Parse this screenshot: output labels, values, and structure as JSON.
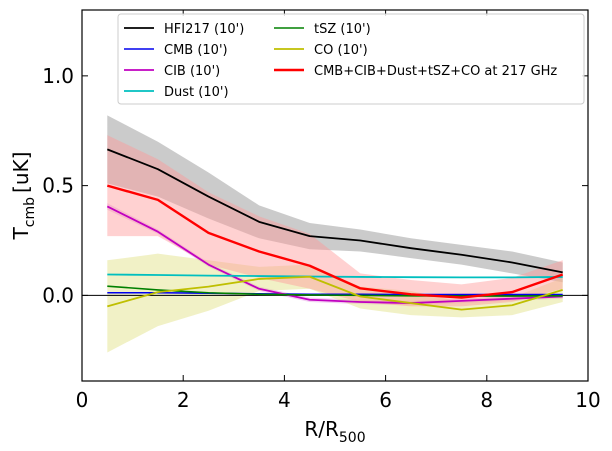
{
  "chart_data": {
    "type": "line",
    "xlabel": "R/R",
    "xlabel_sub": "500",
    "ylabel": "T",
    "ylabel_sub": "cmb",
    "ylabel_unit": "[uK]",
    "xlim": [
      0,
      10
    ],
    "ylim": [
      -0.39,
      1.3
    ],
    "xticks": [
      0,
      2,
      4,
      6,
      8,
      10
    ],
    "xtick_labels": [
      "0",
      "2",
      "4",
      "6",
      "8",
      "10"
    ],
    "yticks": [
      0.0,
      0.5,
      1.0
    ],
    "ytick_labels": [
      "0.0",
      "0.5",
      "1.0"
    ],
    "zero_line": true,
    "grid": false,
    "legend_position": "top",
    "x": [
      0.5,
      1.5,
      2.5,
      3.5,
      4.5,
      5.5,
      6.5,
      7.5,
      8.5,
      9.5
    ],
    "series": [
      {
        "name": "HFI217 (10')",
        "color": "#000000",
        "width": 1.8,
        "values": [
          0.665,
          0.575,
          0.45,
          0.335,
          0.27,
          0.25,
          0.215,
          0.185,
          0.15,
          0.105
        ],
        "band": {
          "color": "#b3b3b3",
          "opacity": 0.68,
          "upper": [
            0.82,
            0.7,
            0.56,
            0.41,
            0.33,
            0.3,
            0.26,
            0.23,
            0.2,
            0.15
          ],
          "lower": [
            0.51,
            0.45,
            0.35,
            0.26,
            0.21,
            0.2,
            0.17,
            0.14,
            0.1,
            0.06
          ]
        }
      },
      {
        "name": "CMB (10')",
        "color": "#0000ee",
        "width": 1.6,
        "values": [
          0.012,
          0.012,
          0.01,
          0.007,
          0.005,
          0.005,
          0.004,
          0.004,
          0.004,
          0.004
        ]
      },
      {
        "name": "CIB (10')",
        "color": "#c000c0",
        "width": 1.8,
        "values": [
          0.405,
          0.29,
          0.14,
          0.03,
          -0.02,
          -0.03,
          -0.035,
          -0.025,
          -0.015,
          -0.005
        ],
        "band": {
          "color": "#e8a0e8",
          "opacity": 0.5,
          "upper": [
            0.42,
            0.3,
            0.15,
            0.04,
            -0.01,
            -0.02,
            -0.025,
            -0.015,
            -0.005,
            0.005
          ],
          "lower": [
            0.39,
            0.28,
            0.13,
            0.02,
            -0.03,
            -0.04,
            -0.045,
            -0.035,
            -0.025,
            -0.015
          ]
        }
      },
      {
        "name": "Dust (10')",
        "color": "#00bfbf",
        "width": 1.8,
        "values": [
          0.095,
          0.093,
          0.09,
          0.088,
          0.086,
          0.084,
          0.083,
          0.082,
          0.082,
          0.084
        ]
      },
      {
        "name": "tSZ (10')",
        "color": "#008000",
        "width": 1.6,
        "values": [
          0.042,
          0.025,
          0.012,
          0.005,
          0.002,
          0.0,
          -0.002,
          -0.003,
          -0.003,
          -0.002
        ]
      },
      {
        "name": "CO (10')",
        "color": "#bfbf00",
        "width": 1.8,
        "values": [
          -0.05,
          0.015,
          0.04,
          0.075,
          0.085,
          -0.005,
          -0.035,
          -0.065,
          -0.045,
          0.025
        ],
        "band": {
          "color": "#e0e080",
          "opacity": 0.45,
          "upper": [
            0.16,
            0.19,
            0.16,
            0.13,
            0.14,
            0.04,
            0.02,
            -0.03,
            -0.01,
            0.08
          ],
          "lower": [
            -0.26,
            -0.14,
            -0.07,
            0.02,
            0.03,
            -0.06,
            -0.09,
            -0.1,
            -0.09,
            -0.03
          ]
        }
      },
      {
        "name": "CMB+CIB+Dust+tSZ+CO at 217 GHz",
        "color": "#ff0000",
        "width": 2.4,
        "values": [
          0.5,
          0.435,
          0.285,
          0.2,
          0.135,
          0.032,
          0.005,
          -0.01,
          0.015,
          0.095
        ],
        "band": {
          "color": "#ff9999",
          "opacity": 0.45,
          "upper": [
            0.73,
            0.62,
            0.47,
            0.36,
            0.28,
            0.1,
            0.07,
            0.05,
            0.08,
            0.16
          ],
          "lower": [
            0.27,
            0.27,
            0.14,
            0.08,
            0.03,
            -0.03,
            -0.05,
            -0.05,
            -0.03,
            0.03
          ]
        }
      }
    ]
  }
}
